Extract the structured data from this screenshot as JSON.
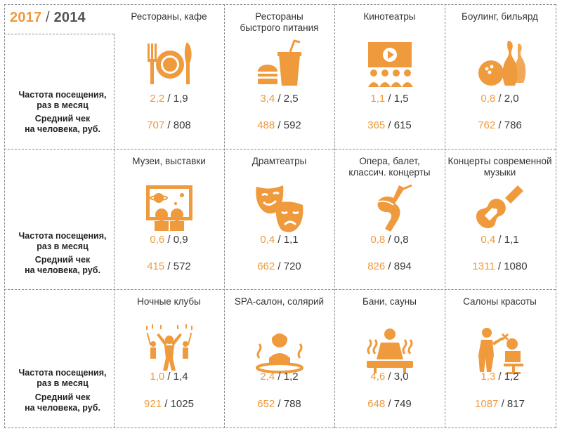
{
  "legend": {
    "year_new": "2017",
    "separator": " / ",
    "year_old": "2014"
  },
  "row_labels": {
    "frequency": [
      "Частота посещения,",
      "раз в месяц"
    ],
    "check": [
      "Средний чек",
      "на человека, руб."
    ]
  },
  "colors": {
    "accent": "#ef9a3c",
    "text": "#3a3a3a",
    "grid": "#8a8a8a"
  },
  "rows": [
    {
      "cells": [
        {
          "category": [
            "Рестораны, кафе"
          ],
          "icon": "plate-fork-knife-icon",
          "frequency_2017": "2,2",
          "frequency_2014": "1,9",
          "check_2017": "707",
          "check_2014": "808"
        },
        {
          "category": [
            "Рестораны",
            "быстрого питания"
          ],
          "icon": "fast-food-icon",
          "frequency_2017": "3,4",
          "frequency_2014": "2,5",
          "check_2017": "488",
          "check_2014": "592"
        },
        {
          "category": [
            "Кинотеатры"
          ],
          "icon": "cinema-icon",
          "frequency_2017": "1,1",
          "frequency_2014": "1,5",
          "check_2017": "365",
          "check_2014": "615"
        },
        {
          "category": [
            "Боулинг, бильярд"
          ],
          "icon": "bowling-icon",
          "frequency_2017": "0,8",
          "frequency_2014": "2,0",
          "check_2017": "762",
          "check_2014": "786"
        }
      ]
    },
    {
      "cells": [
        {
          "category": [
            "Музеи, выставки"
          ],
          "icon": "museum-icon",
          "frequency_2017": "0,6",
          "frequency_2014": "0,9",
          "check_2017": "415",
          "check_2014": "572"
        },
        {
          "category": [
            "Драмтеатры"
          ],
          "icon": "theatre-masks-icon",
          "frequency_2017": "0,4",
          "frequency_2014": "1,1",
          "check_2017": "662",
          "check_2014": "720"
        },
        {
          "category": [
            "Опера, балет,",
            "классич. концерты"
          ],
          "icon": "ballet-shoe-icon",
          "frequency_2017": "0,8",
          "frequency_2014": "0,8",
          "check_2017": "826",
          "check_2014": "894"
        },
        {
          "category": [
            "Концерты современной",
            "музыки"
          ],
          "icon": "guitar-icon",
          "frequency_2017": "0,4",
          "frequency_2014": "1,1",
          "check_2017": "1311",
          "check_2014": "1080"
        }
      ]
    },
    {
      "cells": [
        {
          "category": [
            "Ночные клубы"
          ],
          "icon": "club-crowd-icon",
          "frequency_2017": "1,0",
          "frequency_2014": "1,4",
          "check_2017": "921",
          "check_2014": "1025"
        },
        {
          "category": [
            "SPA-салон, солярий"
          ],
          "icon": "spa-icon",
          "frequency_2017": "2,4",
          "frequency_2014": " 1,2",
          "check_2017": "652",
          "check_2014": "788"
        },
        {
          "category": [
            "Бани, сауны"
          ],
          "icon": "sauna-icon",
          "frequency_2017": "4,6",
          "frequency_2014": "3,0",
          "check_2017": "648",
          "check_2014": "749"
        },
        {
          "category": [
            "Салоны красоты"
          ],
          "icon": "hair-salon-icon",
          "frequency_2017": "1,3",
          "frequency_2014": "1,2",
          "check_2017": "1087",
          "check_2014": "817"
        }
      ]
    }
  ]
}
